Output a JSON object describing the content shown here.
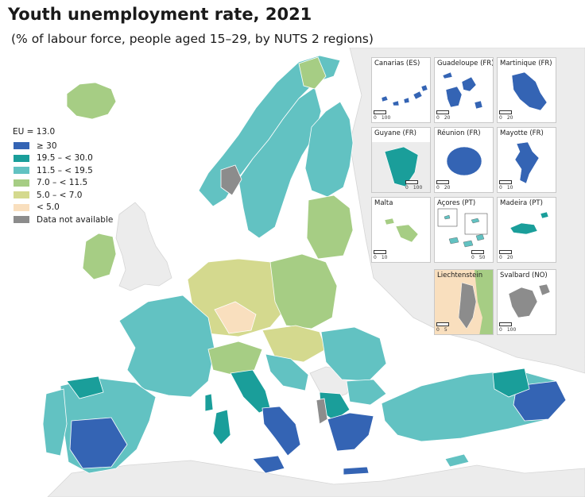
{
  "title": "Youth unemployment rate, 2021",
  "subtitle": "(% of labour force, people aged 15–29, by NUTS 2 regions)",
  "legend": {
    "header": "EU = 13.0",
    "items": [
      {
        "label": "≥ 30",
        "color": "#3464b4"
      },
      {
        "label": "19.5 – < 30.0",
        "color": "#1a9e9a"
      },
      {
        "label": "11.5 – < 19.5",
        "color": "#62c2c2"
      },
      {
        "label": "7.0 – < 11.5",
        "color": "#a6cd84"
      },
      {
        "label": "5.0 – < 7.0",
        "color": "#d4d98e"
      },
      {
        "label": "< 5.0",
        "color": "#f9dfbe"
      },
      {
        "label": "Data not available",
        "color": "#8c8c8c"
      }
    ]
  },
  "insets": [
    {
      "label": "Canarias (ES)",
      "scale": [
        "0",
        "100"
      ]
    },
    {
      "label": "Guadeloupe (FR)",
      "scale": [
        "0",
        "20"
      ]
    },
    {
      "label": "Martinique (FR)",
      "scale": [
        "0",
        "20"
      ]
    },
    {
      "label": "Guyane (FR)",
      "scale": [
        "0",
        "100"
      ]
    },
    {
      "label": "Réunion (FR)",
      "scale": [
        "0",
        "20"
      ]
    },
    {
      "label": "Mayotte (FR)",
      "scale": [
        "0",
        "10"
      ]
    },
    {
      "label": "Malta",
      "scale": [
        "0",
        "10"
      ]
    },
    {
      "label": "Açores (PT)",
      "scale": [
        "0",
        "50"
      ]
    },
    {
      "label": "Madeira (PT)",
      "scale": [
        "0",
        "20"
      ]
    },
    {
      "label": "Liechtenstein",
      "scale": [
        "0",
        "5"
      ]
    },
    {
      "label": "Svalbard (NO)",
      "scale": [
        "0",
        "100"
      ]
    }
  ]
}
